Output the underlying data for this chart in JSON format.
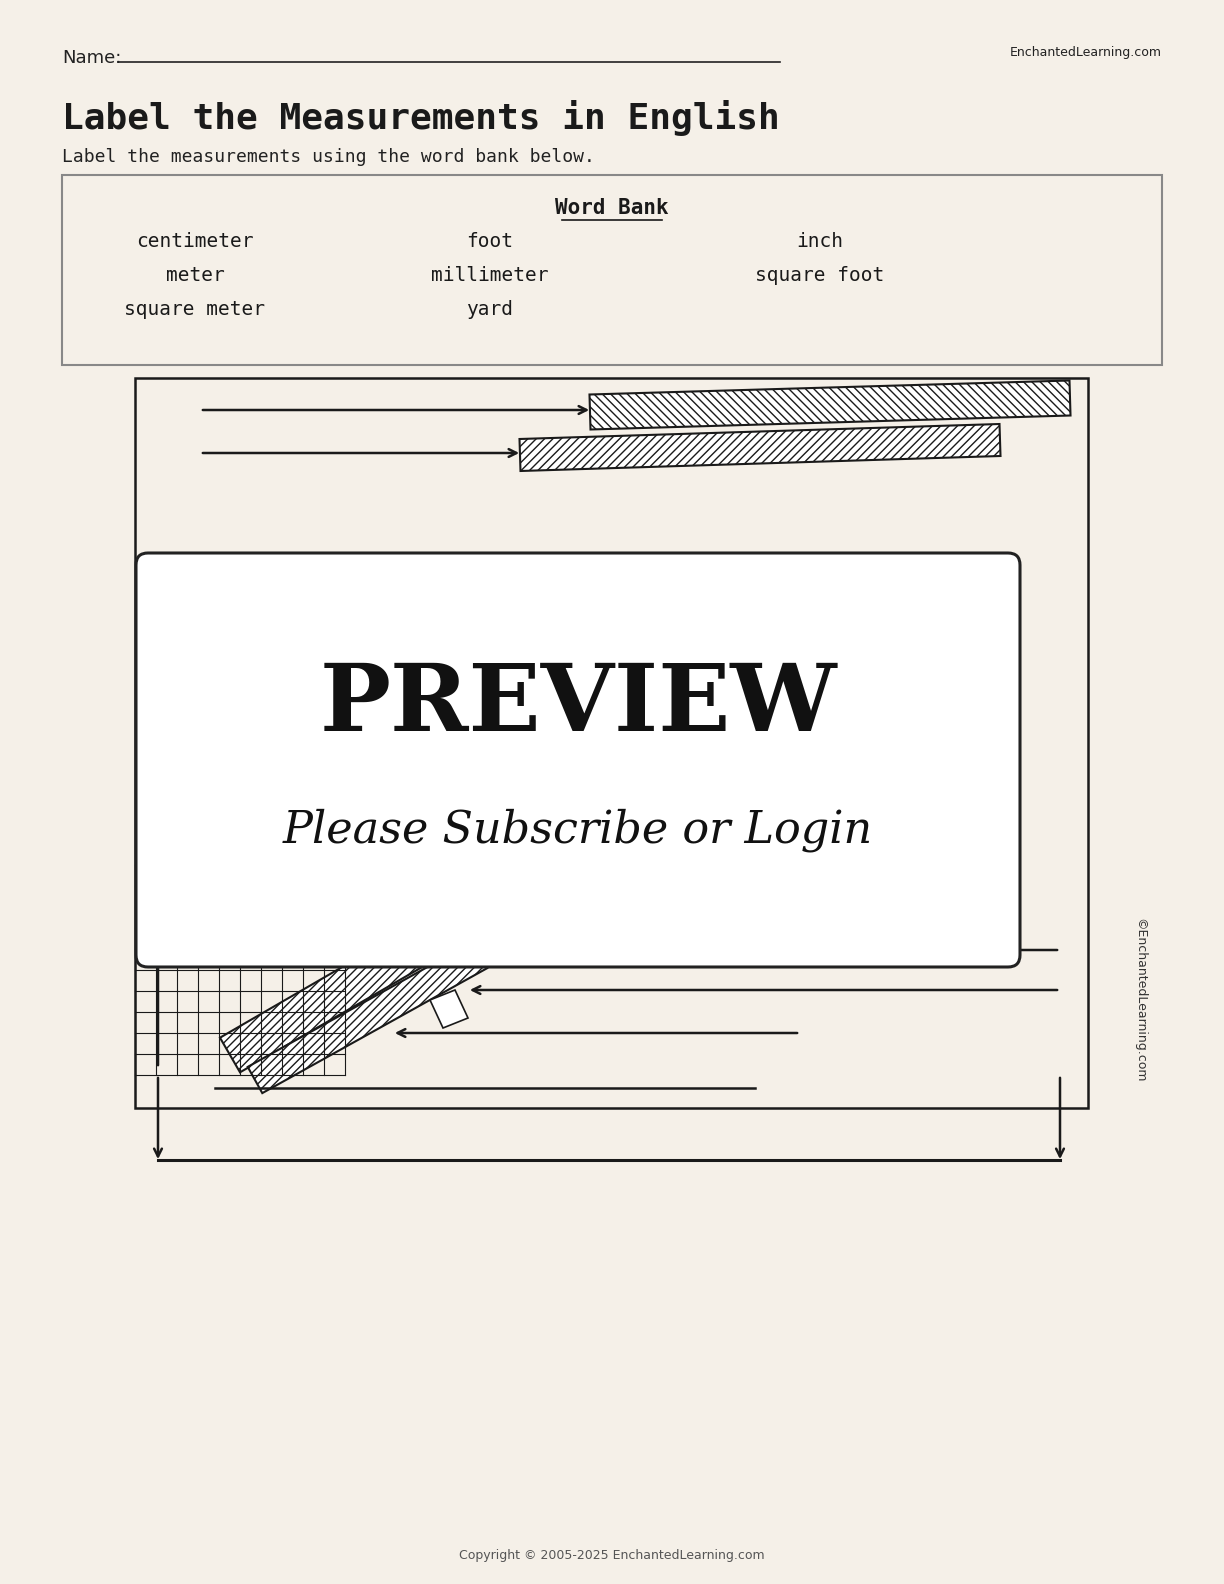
{
  "bg_color": "#f5f0e8",
  "title": "Label the Measurements in English",
  "subtitle": "Label the measurements using the word bank below.",
  "name_label": "Name:",
  "enchanted_text": "EnchantedLearning.com",
  "copyright_text": "Copyright © 2005-2025 EnchantedLearning.com",
  "watermark_text": "©EnchantedLearning.com",
  "word_bank_title": "Word Bank",
  "word_bank_col1": [
    "centimeter",
    "meter",
    "square meter"
  ],
  "word_bank_col2": [
    "foot",
    "millimeter",
    "yard"
  ],
  "word_bank_col3": [
    "inch",
    "square foot"
  ],
  "preview_text": "PREVIEW",
  "subscribe_text": "Please Subscribe or Login"
}
